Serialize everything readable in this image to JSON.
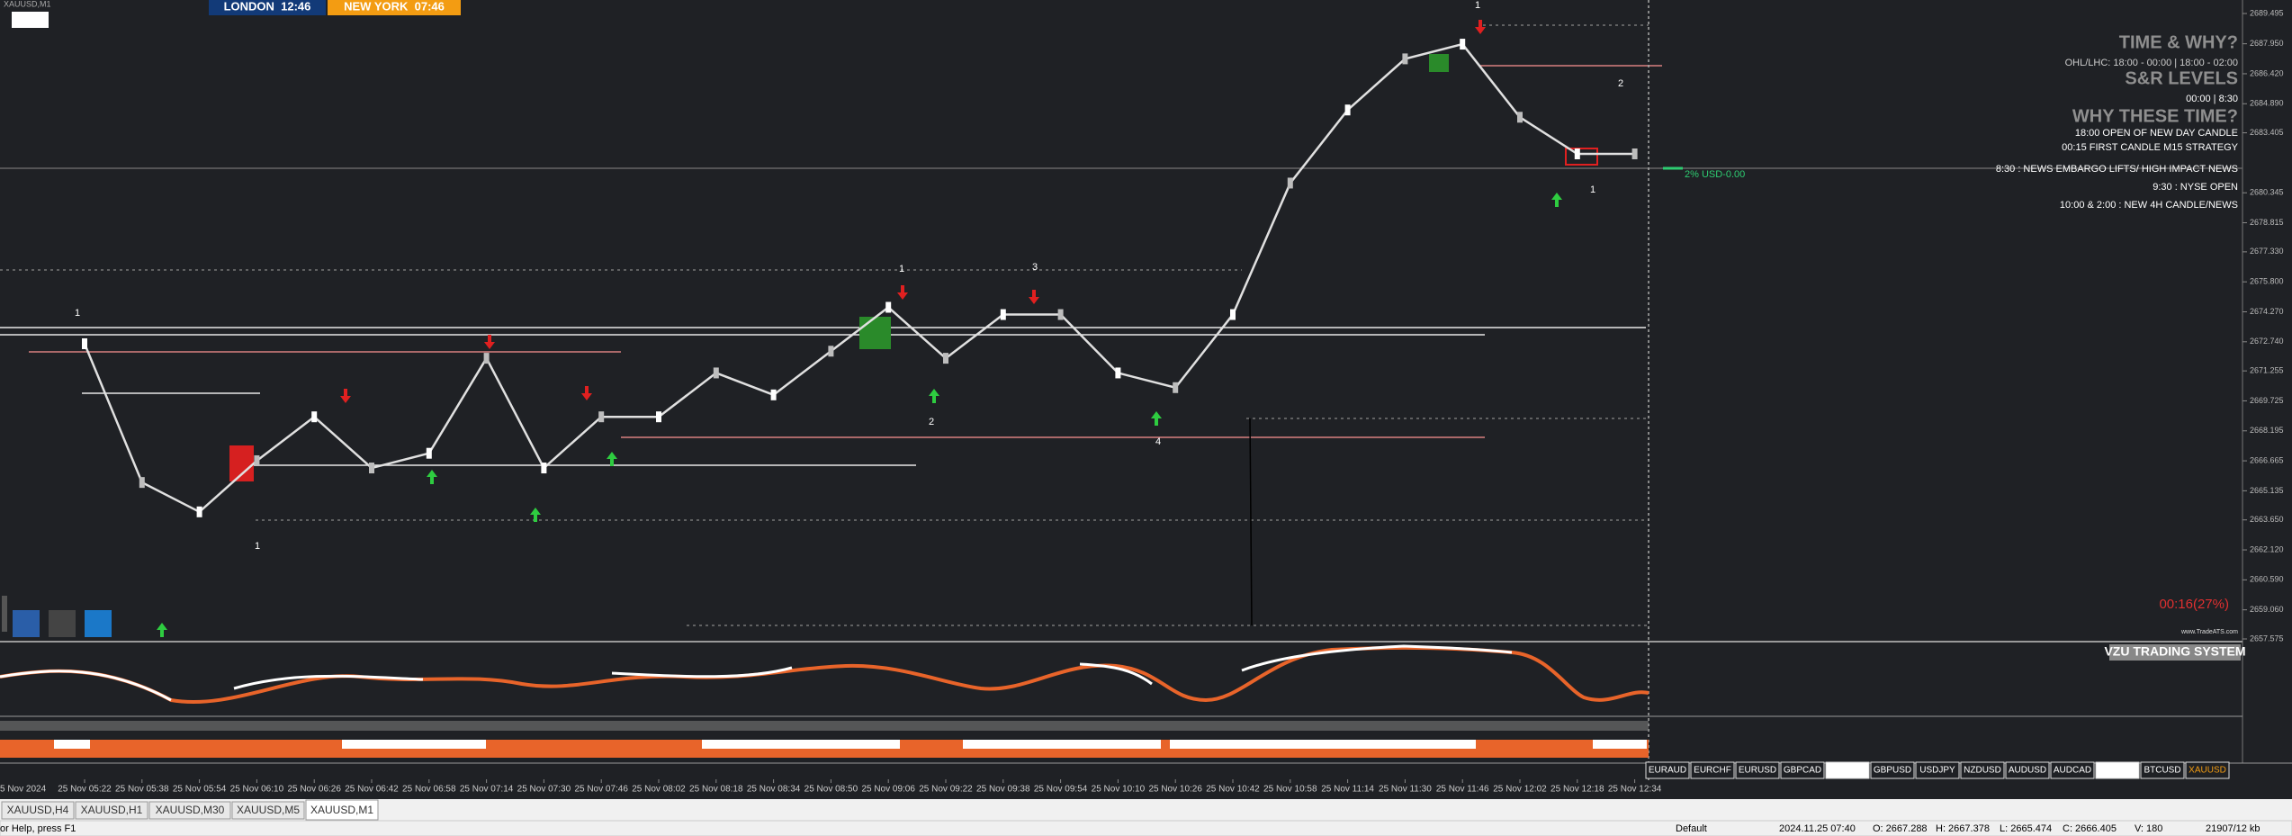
{
  "header": {
    "symbol": "XAUUSD,M1",
    "london": "LONDON  12:46",
    "new_york": "NEW YORK  07:46"
  },
  "chart": {
    "type": "line",
    "ylim": [
      2657.575,
      2689.495
    ],
    "yticks": [
      2689.495,
      {
        "value": 2687.95,
        "label": "2687.950"
      },
      {
        "value": 2686.42,
        "label": "2686.420"
      },
      {
        "value": 2684.89,
        "label": "2684.890"
      },
      2683.405,
      2680.345,
      2678.815,
      {
        "value": 2677.33,
        "label": "2677.330"
      },
      {
        "value": 2675.8,
        "label": "2675.800"
      },
      {
        "value": 2674.27,
        "label": "2674.270"
      },
      {
        "value": 2672.74,
        "label": "2672.740"
      },
      2671.255,
      2669.725,
      2668.195,
      2666.665,
      2665.135,
      {
        "value": 2663.65,
        "label": "2663.650"
      },
      {
        "value": 2662.12,
        "label": "2662.120"
      },
      {
        "value": 2660.59,
        "label": "2660.590"
      },
      {
        "value": 2659.06,
        "label": "2659.060"
      },
      2657.575
    ],
    "first_time_label": "5 Nov 2024",
    "time_labels": [
      "25 Nov 05:22",
      "25 Nov 05:38",
      "25 Nov 05:54",
      "25 Nov 06:10",
      "25 Nov 06:26",
      "25 Nov 06:42",
      "25 Nov 06:58",
      "25 Nov 07:14",
      "25 Nov 07:30",
      "25 Nov 07:46",
      "25 Nov 08:02",
      "25 Nov 08:18",
      "25 Nov 08:34",
      "25 Nov 08:50",
      "25 Nov 09:06",
      "25 Nov 09:22",
      "25 Nov 09:38",
      "25 Nov 09:54",
      "25 Nov 10:10",
      "25 Nov 10:26",
      "25 Nov 10:42",
      "25 Nov 10:58",
      "25 Nov 11:14",
      "25 Nov 11:30",
      "25 Nov 11:46",
      "25 Nov 12:02",
      "25 Nov 12:18",
      "25 Nov 12:34"
    ],
    "close": [
      2672.64,
      2665.56,
      2664.06,
      2666.67,
      2668.91,
      2666.3,
      2667.05,
      2671.9,
      2666.3,
      2668.91,
      2668.91,
      2671.15,
      2670.03,
      2672.26,
      2674.5,
      2671.9,
      2674.13,
      2674.13,
      2671.15,
      2670.4,
      2674.13,
      2680.84,
      2684.57,
      2687.18,
      2687.93,
      2684.2,
      2682.33,
      2682.33
    ],
    "annotations": [
      "1",
      "1",
      "1",
      "2",
      "3",
      "4",
      "1",
      "2",
      "1"
    ]
  },
  "info_panel": {
    "title": "TIME & WHY?",
    "ohl": "OHL/LHC: 18:00 - 00:00 | 18:00 - 02:00",
    "sr_title": "S&R LEVELS",
    "sr_times": "00:00 | 8:30",
    "why_title": "WHY THESE TIME?",
    "reasons": [
      "18:00 OPEN OF NEW DAY CANDLE",
      "00:15 FIRST CANDLE M15 STRATEGY",
      "8:30 : NEWS EMBARGO LIFTS/ HIGH IMPACT NEWS",
      "9:30 : NYSE OPEN",
      "10:00 & 2:00 : NEW 4H CANDLE/NEWS"
    ]
  },
  "risk": "2% USD-0.00",
  "timer": "00:16(27%)",
  "website": "www.TradeATS.com",
  "indicator": {
    "title": "VZU TRADING SYSTEM"
  },
  "symbols": [
    "EURAUD",
    "EURCHF",
    "EURUSD",
    "GBPCAD",
    null,
    "GBPUSD",
    "USDJPY",
    "NZDUSD",
    "AUDUSD",
    "AUDCAD",
    null,
    "BTCUSD",
    "XAUUSD"
  ],
  "tabs": [
    "XAUUSD,H4",
    "XAUUSD,H1",
    "XAUUSD,M30",
    "XAUUSD,M5",
    "XAUUSD,M1"
  ],
  "status": {
    "help": "or Help, press F1",
    "profile": "Default",
    "time": "2024.11.25 07:40",
    "open": "O: 2667.288",
    "high": "H: 2667.378",
    "low": "L: 2665.474",
    "close": "C: 2666.405",
    "volume": "V: 180",
    "traffic": "21907/12 kb"
  }
}
